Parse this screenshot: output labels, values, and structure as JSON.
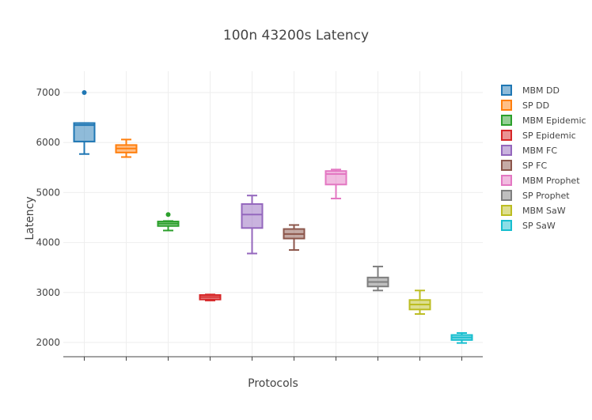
{
  "chart_data": {
    "type": "box",
    "title": "100n 43200s Latency",
    "xlabel": "Protocols",
    "ylabel": "Latency",
    "ylim": [
      1700,
      7250
    ],
    "yticks": [
      2000,
      3000,
      4000,
      5000,
      6000,
      7000
    ],
    "grid": true,
    "legend_position": "right",
    "series": [
      {
        "name": "MBM DD",
        "color": "#1f77b4",
        "min": 5770,
        "q1": 6020,
        "median": 6350,
        "q3": 6390,
        "max": 6390,
        "outliers": [
          7000
        ]
      },
      {
        "name": "SP DD",
        "color": "#ff7f0e",
        "min": 5710,
        "q1": 5800,
        "median": 5880,
        "q3": 5950,
        "max": 6060,
        "outliers": []
      },
      {
        "name": "MBM Epidemic",
        "color": "#2ca02c",
        "min": 4240,
        "q1": 4330,
        "median": 4380,
        "q3": 4420,
        "max": 4430,
        "outliers": [
          4560
        ]
      },
      {
        "name": "SP Epidemic",
        "color": "#d62728",
        "min": 2840,
        "q1": 2860,
        "median": 2910,
        "q3": 2950,
        "max": 2960,
        "outliers": []
      },
      {
        "name": "MBM FC",
        "color": "#9467bd",
        "min": 3780,
        "q1": 4290,
        "median": 4560,
        "q3": 4770,
        "max": 4940,
        "outliers": []
      },
      {
        "name": "SP FC",
        "color": "#8c564b",
        "min": 3850,
        "q1": 4080,
        "median": 4170,
        "q3": 4270,
        "max": 4350,
        "outliers": []
      },
      {
        "name": " MBM Prophet",
        "color": "#e377c2",
        "min": 4880,
        "q1": 5160,
        "median": 5370,
        "q3": 5430,
        "max": 5460,
        "outliers": []
      },
      {
        "name": "SP Prophet",
        "color": "#7f7f7f",
        "min": 3040,
        "q1": 3120,
        "median": 3210,
        "q3": 3300,
        "max": 3520,
        "outliers": []
      },
      {
        "name": "MBM SaW",
        "color": "#bcbd22",
        "min": 2570,
        "q1": 2660,
        "median": 2760,
        "q3": 2850,
        "max": 3040,
        "outliers": []
      },
      {
        "name": "SP SaW",
        "color": "#17becf",
        "min": 1990,
        "q1": 2050,
        "median": 2100,
        "q3": 2150,
        "max": 2190,
        "outliers": []
      }
    ]
  }
}
